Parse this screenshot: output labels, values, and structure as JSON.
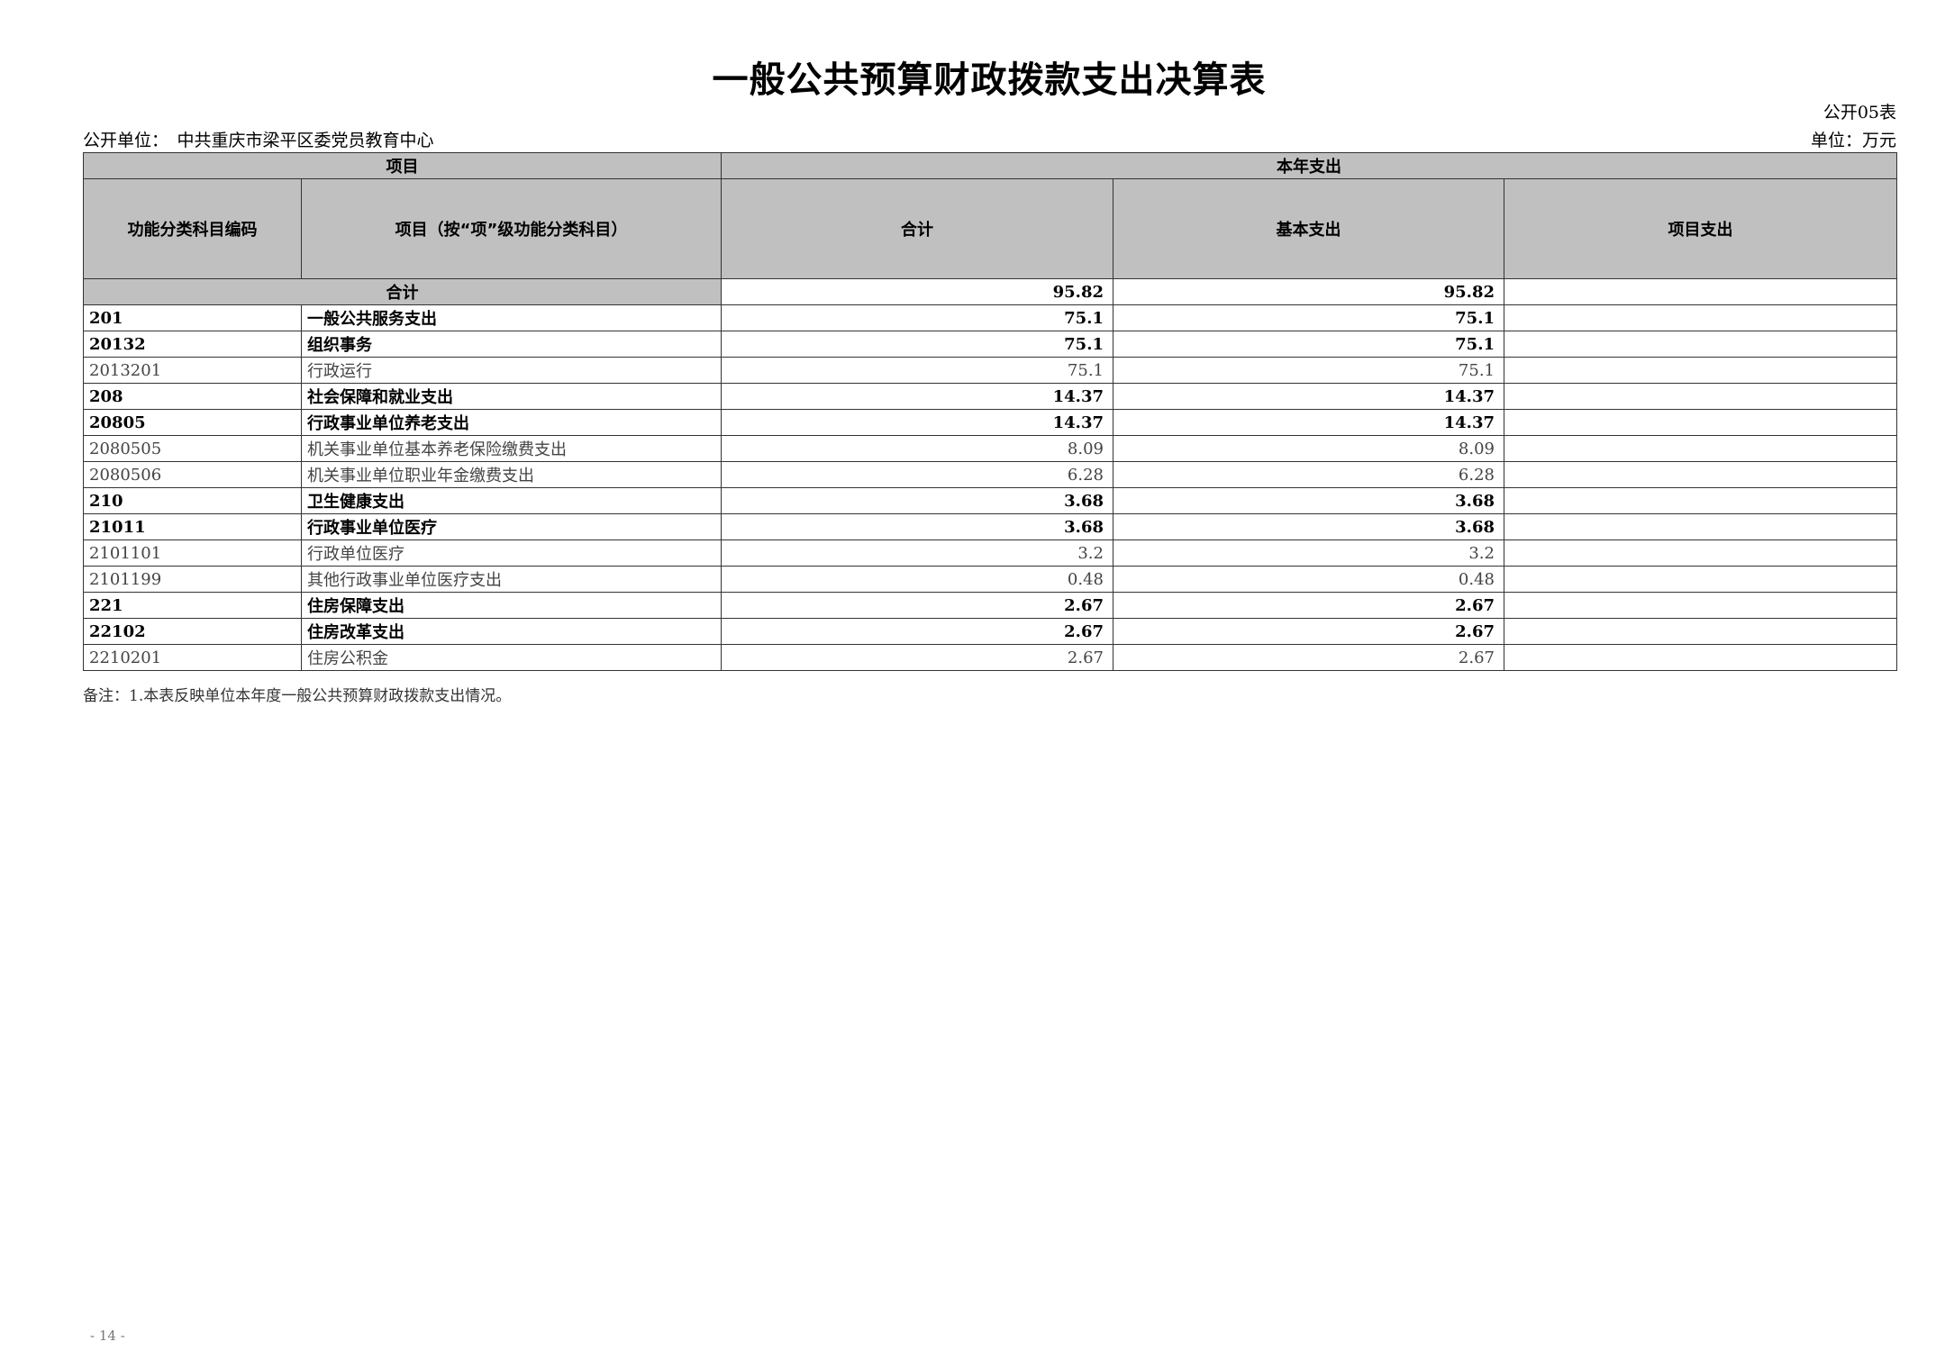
{
  "title": "一般公共预算财政拨款支出决算表",
  "form_no": "公开05表",
  "unit_label": "公开单位：　中共重庆市梁平区委党员教育中心",
  "unit_money": "单位：万元",
  "headers": {
    "item": "项目",
    "current_year": "本年支出",
    "code": "功能分类科目编码",
    "name": "项目（按“项”级功能分类科目）",
    "total": "合计",
    "basic": "基本支出",
    "project": "项目支出"
  },
  "total_row": {
    "label": "合计",
    "total": "95.82",
    "basic": "95.82",
    "project": ""
  },
  "rows": [
    {
      "code": "201",
      "name": "一般公共服务支出",
      "total": "75.1",
      "basic": "75.1",
      "project": "",
      "bold": true
    },
    {
      "code": "20132",
      "name": "组织事务",
      "total": "75.1",
      "basic": "75.1",
      "project": "",
      "bold": true
    },
    {
      "code": "2013201",
      "name": "行政运行",
      "total": "75.1",
      "basic": "75.1",
      "project": "",
      "bold": false
    },
    {
      "code": "208",
      "name": "社会保障和就业支出",
      "total": "14.37",
      "basic": "14.37",
      "project": "",
      "bold": true
    },
    {
      "code": "20805",
      "name": "行政事业单位养老支出",
      "total": "14.37",
      "basic": "14.37",
      "project": "",
      "bold": true
    },
    {
      "code": "2080505",
      "name": "机关事业单位基本养老保险缴费支出",
      "total": "8.09",
      "basic": "8.09",
      "project": "",
      "bold": false
    },
    {
      "code": "2080506",
      "name": "机关事业单位职业年金缴费支出",
      "total": "6.28",
      "basic": "6.28",
      "project": "",
      "bold": false
    },
    {
      "code": "210",
      "name": "卫生健康支出",
      "total": "3.68",
      "basic": "3.68",
      "project": "",
      "bold": true
    },
    {
      "code": "21011",
      "name": "行政事业单位医疗",
      "total": "3.68",
      "basic": "3.68",
      "project": "",
      "bold": true
    },
    {
      "code": "2101101",
      "name": "行政单位医疗",
      "total": "3.2",
      "basic": "3.2",
      "project": "",
      "bold": false
    },
    {
      "code": "2101199",
      "name": "其他行政事业单位医疗支出",
      "total": "0.48",
      "basic": "0.48",
      "project": "",
      "bold": false
    },
    {
      "code": "221",
      "name": "住房保障支出",
      "total": "2.67",
      "basic": "2.67",
      "project": "",
      "bold": true
    },
    {
      "code": "22102",
      "name": "住房改革支出",
      "total": "2.67",
      "basic": "2.67",
      "project": "",
      "bold": true
    },
    {
      "code": "2210201",
      "name": "住房公积金",
      "total": "2.67",
      "basic": "2.67",
      "project": "",
      "bold": false
    }
  ],
  "note": "备注：1.本表反映单位本年度一般公共预算财政拨款支出情况。",
  "page_no": "- 14 -",
  "colors": {
    "header_bg": "#c0c0c0"
  }
}
